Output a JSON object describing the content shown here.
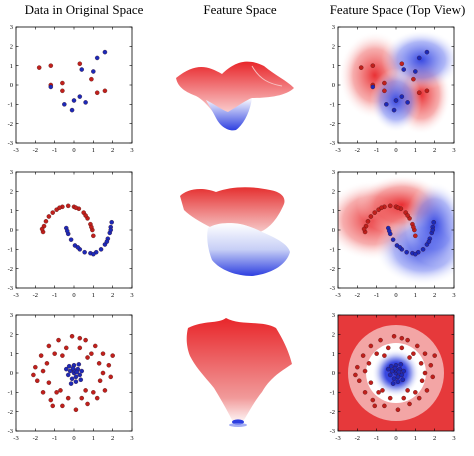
{
  "titles": [
    "Data in Original Space",
    "Feature Space",
    "Feature Space (Top View)"
  ],
  "axis": {
    "xlim": [
      -3,
      3
    ],
    "ylim": [
      -3,
      3
    ],
    "ticks": [
      -3,
      -2,
      -1,
      0,
      1,
      2,
      3
    ]
  },
  "colors": {
    "class_red": "#c0201c",
    "class_blue": "#1c2ab8",
    "field_red": "#e8262a",
    "field_blue": "#2d3fe0",
    "field_white": "#ffffff"
  },
  "chart_data": [
    {
      "type": "scatter",
      "panel": "row1-original",
      "xlim": [
        -3,
        3
      ],
      "ylim": [
        -3,
        3
      ],
      "series": [
        {
          "color": "red",
          "points": [
            [
              -1.8,
              0.9
            ],
            [
              -1.2,
              1.0
            ],
            [
              -0.6,
              0.1
            ],
            [
              -1.2,
              0.0
            ],
            [
              -0.6,
              -0.3
            ],
            [
              0.3,
              1.1
            ],
            [
              0.9,
              0.3
            ],
            [
              1.6,
              -0.3
            ],
            [
              1.2,
              -0.4
            ]
          ]
        },
        {
          "color": "blue",
          "points": [
            [
              1.6,
              1.7
            ],
            [
              1.2,
              1.4
            ],
            [
              0.4,
              0.8
            ],
            [
              1.0,
              0.7
            ],
            [
              -1.2,
              -0.1
            ],
            [
              0.3,
              -0.6
            ],
            [
              0.0,
              -0.8
            ],
            [
              0.6,
              -0.9
            ],
            [
              -0.5,
              -1.0
            ],
            [
              -0.1,
              -1.3
            ]
          ]
        }
      ]
    },
    {
      "type": "surface",
      "panel": "row1-feature-space",
      "description_shape": "saddle-like surface with red peaks and blue troughs"
    },
    {
      "type": "heatmap",
      "panel": "row1-top-view",
      "xlim": [
        -3,
        3
      ],
      "ylim": [
        -3,
        3
      ],
      "series": [
        {
          "color": "red",
          "points": [
            [
              -1.8,
              0.9
            ],
            [
              -1.2,
              1.0
            ],
            [
              -0.6,
              0.1
            ],
            [
              -1.2,
              0.0
            ],
            [
              -0.6,
              -0.3
            ],
            [
              0.3,
              1.1
            ],
            [
              0.9,
              0.3
            ],
            [
              1.6,
              -0.3
            ],
            [
              1.2,
              -0.4
            ]
          ]
        },
        {
          "color": "blue",
          "points": [
            [
              1.6,
              1.7
            ],
            [
              1.2,
              1.4
            ],
            [
              0.4,
              0.8
            ],
            [
              1.0,
              0.7
            ],
            [
              -1.2,
              -0.1
            ],
            [
              0.3,
              -0.6
            ],
            [
              0.0,
              -0.8
            ],
            [
              0.6,
              -0.9
            ],
            [
              -0.5,
              -1.0
            ],
            [
              -0.1,
              -1.3
            ]
          ]
        }
      ]
    },
    {
      "type": "scatter",
      "panel": "row2-original",
      "xlim": [
        -3,
        3
      ],
      "ylim": [
        -3,
        3
      ],
      "series": [
        {
          "color": "red",
          "points": [
            [
              -1.6,
              -0.1
            ],
            [
              -1.55,
              0.2
            ],
            [
              -1.45,
              0.45
            ],
            [
              -1.3,
              0.7
            ],
            [
              -1.1,
              0.9
            ],
            [
              -0.9,
              1.05
            ],
            [
              -0.6,
              1.2
            ],
            [
              -0.3,
              1.25
            ],
            [
              0.0,
              1.2
            ],
            [
              0.25,
              1.1
            ],
            [
              0.5,
              0.9
            ],
            [
              0.7,
              0.6
            ],
            [
              0.85,
              0.3
            ],
            [
              0.95,
              0.0
            ],
            [
              1.0,
              -0.3
            ],
            [
              -1.65,
              0.05
            ],
            [
              -0.75,
              1.15
            ],
            [
              0.1,
              1.15
            ],
            [
              0.6,
              0.75
            ],
            [
              0.9,
              0.15
            ]
          ]
        },
        {
          "color": "blue",
          "points": [
            [
              -0.4,
              0.1
            ],
            [
              -0.3,
              -0.2
            ],
            [
              -0.15,
              -0.5
            ],
            [
              0.05,
              -0.8
            ],
            [
              0.3,
              -1.0
            ],
            [
              0.55,
              -1.15
            ],
            [
              0.85,
              -1.2
            ],
            [
              1.15,
              -1.15
            ],
            [
              1.4,
              -1.0
            ],
            [
              1.6,
              -0.75
            ],
            [
              1.75,
              -0.45
            ],
            [
              1.85,
              -0.15
            ],
            [
              1.9,
              0.15
            ],
            [
              1.95,
              0.4
            ],
            [
              -0.35,
              -0.05
            ],
            [
              0.2,
              -0.9
            ],
            [
              1.0,
              -1.25
            ],
            [
              1.7,
              -0.6
            ],
            [
              1.9,
              0.0
            ]
          ]
        }
      ]
    },
    {
      "type": "surface",
      "panel": "row2-feature-space",
      "description_shape": "red ridge on top, blue bowl below"
    },
    {
      "type": "heatmap",
      "panel": "row2-top-view",
      "xlim": [
        -3,
        3
      ],
      "ylim": [
        -3,
        3
      ],
      "series": [
        {
          "color": "red",
          "points": [
            [
              -1.6,
              -0.1
            ],
            [
              -1.55,
              0.2
            ],
            [
              -1.45,
              0.45
            ],
            [
              -1.3,
              0.7
            ],
            [
              -1.1,
              0.9
            ],
            [
              -0.9,
              1.05
            ],
            [
              -0.6,
              1.2
            ],
            [
              -0.3,
              1.25
            ],
            [
              0.0,
              1.2
            ],
            [
              0.25,
              1.1
            ],
            [
              0.5,
              0.9
            ],
            [
              0.7,
              0.6
            ],
            [
              0.85,
              0.3
            ],
            [
              0.95,
              0.0
            ],
            [
              1.0,
              -0.3
            ],
            [
              -1.65,
              0.05
            ],
            [
              -0.75,
              1.15
            ],
            [
              0.1,
              1.15
            ],
            [
              0.6,
              0.75
            ],
            [
              0.9,
              0.15
            ]
          ]
        },
        {
          "color": "blue",
          "points": [
            [
              -0.4,
              0.1
            ],
            [
              -0.3,
              -0.2
            ],
            [
              -0.15,
              -0.5
            ],
            [
              0.05,
              -0.8
            ],
            [
              0.3,
              -1.0
            ],
            [
              0.55,
              -1.15
            ],
            [
              0.85,
              -1.2
            ],
            [
              1.15,
              -1.15
            ],
            [
              1.4,
              -1.0
            ],
            [
              1.6,
              -0.75
            ],
            [
              1.75,
              -0.45
            ],
            [
              1.85,
              -0.15
            ],
            [
              1.9,
              0.15
            ],
            [
              1.95,
              0.4
            ],
            [
              -0.35,
              -0.05
            ],
            [
              0.2,
              -0.9
            ],
            [
              1.0,
              -1.25
            ],
            [
              1.7,
              -0.6
            ],
            [
              1.9,
              0.0
            ]
          ]
        }
      ]
    },
    {
      "type": "scatter",
      "panel": "row3-original",
      "xlim": [
        -3,
        3
      ],
      "ylim": [
        -3,
        3
      ],
      "series": [
        {
          "color": "red",
          "points": [
            [
              -2.0,
              0.3
            ],
            [
              -1.9,
              -0.4
            ],
            [
              -1.7,
              0.9
            ],
            [
              -1.6,
              -1.0
            ],
            [
              -1.3,
              1.4
            ],
            [
              -1.2,
              -1.4
            ],
            [
              -0.8,
              1.7
            ],
            [
              -0.6,
              -1.7
            ],
            [
              -0.1,
              1.9
            ],
            [
              0.1,
              -1.9
            ],
            [
              0.6,
              1.7
            ],
            [
              0.7,
              -1.6
            ],
            [
              1.1,
              1.4
            ],
            [
              1.2,
              -1.3
            ],
            [
              1.5,
              1.0
            ],
            [
              1.6,
              -0.9
            ],
            [
              1.8,
              0.4
            ],
            [
              1.9,
              -0.2
            ],
            [
              -1.4,
              0.5
            ],
            [
              -1.3,
              -0.5
            ],
            [
              -1.0,
              1.0
            ],
            [
              -0.9,
              -1.0
            ],
            [
              -0.4,
              1.3
            ],
            [
              -0.3,
              -1.3
            ],
            [
              0.3,
              1.3
            ],
            [
              0.4,
              -1.3
            ],
            [
              0.9,
              1.0
            ],
            [
              1.0,
              -1.0
            ],
            [
              1.3,
              0.5
            ],
            [
              1.35,
              -0.4
            ],
            [
              -1.6,
              0.1
            ],
            [
              1.5,
              0.0
            ],
            [
              -0.6,
              0.9
            ],
            [
              0.7,
              0.8
            ],
            [
              -0.7,
              -0.9
            ],
            [
              0.6,
              -0.9
            ],
            [
              -2.1,
              -0.1
            ],
            [
              2.0,
              0.9
            ],
            [
              -1.1,
              -1.7
            ],
            [
              0.3,
              1.8
            ]
          ]
        },
        {
          "color": "blue",
          "points": [
            [
              0.0,
              0.0
            ],
            [
              0.2,
              0.2
            ],
            [
              -0.2,
              0.1
            ],
            [
              0.1,
              -0.2
            ],
            [
              -0.1,
              -0.3
            ],
            [
              0.3,
              -0.1
            ],
            [
              -0.3,
              -0.1
            ],
            [
              0.0,
              0.4
            ],
            [
              0.25,
              0.45
            ],
            [
              -0.25,
              0.35
            ],
            [
              0.4,
              0.1
            ],
            [
              -0.4,
              0.2
            ],
            [
              0.1,
              -0.45
            ],
            [
              -0.15,
              -0.55
            ],
            [
              0.35,
              -0.35
            ],
            [
              0.0,
              0.15
            ],
            [
              0.15,
              0.05
            ],
            [
              -0.05,
              0.25
            ]
          ]
        }
      ]
    },
    {
      "type": "surface",
      "panel": "row3-feature-space",
      "description_shape": "red funnel with a blue well at the bottom"
    },
    {
      "type": "heatmap",
      "panel": "row3-top-view",
      "xlim": [
        -3,
        3
      ],
      "ylim": [
        -3,
        3
      ],
      "series": [
        {
          "color": "red",
          "points": [
            [
              -2.0,
              0.3
            ],
            [
              -1.9,
              -0.4
            ],
            [
              -1.7,
              0.9
            ],
            [
              -1.6,
              -1.0
            ],
            [
              -1.3,
              1.4
            ],
            [
              -1.2,
              -1.4
            ],
            [
              -0.8,
              1.7
            ],
            [
              -0.6,
              -1.7
            ],
            [
              -0.1,
              1.9
            ],
            [
              0.1,
              -1.9
            ],
            [
              0.6,
              1.7
            ],
            [
              0.7,
              -1.6
            ],
            [
              1.1,
              1.4
            ],
            [
              1.2,
              -1.3
            ],
            [
              1.5,
              1.0
            ],
            [
              1.6,
              -0.9
            ],
            [
              1.8,
              0.4
            ],
            [
              1.9,
              -0.2
            ],
            [
              -1.4,
              0.5
            ],
            [
              -1.3,
              -0.5
            ],
            [
              -1.0,
              1.0
            ],
            [
              -0.9,
              -1.0
            ],
            [
              -0.4,
              1.3
            ],
            [
              -0.3,
              -1.3
            ],
            [
              0.3,
              1.3
            ],
            [
              0.4,
              -1.3
            ],
            [
              0.9,
              1.0
            ],
            [
              1.0,
              -1.0
            ],
            [
              1.3,
              0.5
            ],
            [
              1.35,
              -0.4
            ],
            [
              -1.6,
              0.1
            ],
            [
              1.5,
              0.0
            ],
            [
              -0.6,
              0.9
            ],
            [
              0.7,
              0.8
            ],
            [
              -0.7,
              -0.9
            ],
            [
              0.6,
              -0.9
            ],
            [
              -2.1,
              -0.1
            ],
            [
              2.0,
              0.9
            ],
            [
              -1.1,
              -1.7
            ],
            [
              0.3,
              1.8
            ]
          ]
        },
        {
          "color": "blue",
          "points": [
            [
              0.0,
              0.0
            ],
            [
              0.2,
              0.2
            ],
            [
              -0.2,
              0.1
            ],
            [
              0.1,
              -0.2
            ],
            [
              -0.1,
              -0.3
            ],
            [
              0.3,
              -0.1
            ],
            [
              -0.3,
              -0.1
            ],
            [
              0.0,
              0.4
            ],
            [
              0.25,
              0.45
            ],
            [
              -0.25,
              0.35
            ],
            [
              0.4,
              0.1
            ],
            [
              -0.4,
              0.2
            ],
            [
              0.1,
              -0.45
            ],
            [
              -0.15,
              -0.55
            ],
            [
              0.35,
              -0.35
            ],
            [
              0.0,
              0.15
            ],
            [
              0.15,
              0.05
            ],
            [
              -0.05,
              0.25
            ]
          ]
        }
      ]
    }
  ]
}
